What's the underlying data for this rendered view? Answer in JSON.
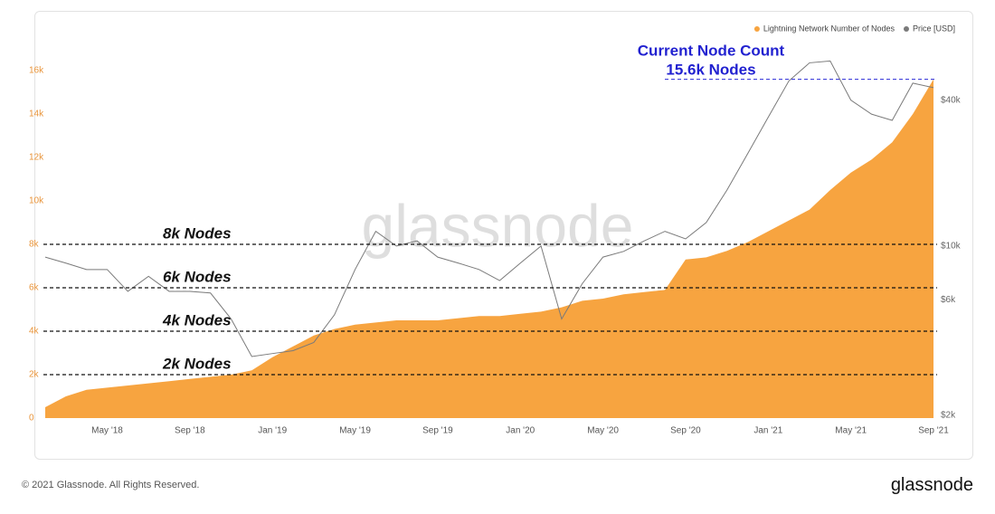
{
  "chart_data": {
    "type": "area-line",
    "watermark": "glassnode",
    "footer": "© 2021 Glassnode. All Rights Reserved.",
    "brand": "glassnode",
    "x": [
      "2018-02",
      "2018-03",
      "2018-04",
      "2018-05",
      "2018-06",
      "2018-07",
      "2018-08",
      "2018-09",
      "2018-10",
      "2018-11",
      "2018-12",
      "2019-01",
      "2019-02",
      "2019-03",
      "2019-04",
      "2019-05",
      "2019-06",
      "2019-07",
      "2019-08",
      "2019-09",
      "2019-10",
      "2019-11",
      "2019-12",
      "2020-01",
      "2020-02",
      "2020-03",
      "2020-04",
      "2020-05",
      "2020-06",
      "2020-07",
      "2020-08",
      "2020-09",
      "2020-10",
      "2020-11",
      "2020-12",
      "2021-01",
      "2021-02",
      "2021-03",
      "2021-04",
      "2021-05",
      "2021-06",
      "2021-07",
      "2021-08",
      "2021-09"
    ],
    "xlim": [
      "2018-02",
      "2021-09"
    ],
    "xticks": [
      {
        "value": "2018-05",
        "label": "May '18"
      },
      {
        "value": "2018-09",
        "label": "Sep '18"
      },
      {
        "value": "2019-01",
        "label": "Jan '19"
      },
      {
        "value": "2019-05",
        "label": "May '19"
      },
      {
        "value": "2019-09",
        "label": "Sep '19"
      },
      {
        "value": "2020-01",
        "label": "Jan '20"
      },
      {
        "value": "2020-05",
        "label": "May '20"
      },
      {
        "value": "2020-09",
        "label": "Sep '20"
      },
      {
        "value": "2021-01",
        "label": "Jan '21"
      },
      {
        "value": "2021-05",
        "label": "May '21"
      },
      {
        "value": "2021-09",
        "label": "Sep '21"
      }
    ],
    "series": [
      {
        "name": "Lightning Network Number of Nodes",
        "color": "#f7a440",
        "kind": "area",
        "values": [
          500,
          1000,
          1300,
          1400,
          1500,
          1600,
          1700,
          1800,
          1900,
          2000,
          2200,
          2800,
          3300,
          3800,
          4100,
          4300,
          4400,
          4500,
          4500,
          4500,
          4600,
          4700,
          4700,
          4800,
          4900,
          5100,
          5400,
          5500,
          5700,
          5800,
          5900,
          7300,
          7400,
          7700,
          8100,
          8600,
          9100,
          9600,
          10500,
          11300,
          11900,
          12700,
          14000,
          15600
        ]
      },
      {
        "name": "Price [USD]",
        "color": "#7a7a7a",
        "kind": "line",
        "axis": "y2",
        "values": [
          9000,
          8500,
          8000,
          8000,
          6500,
          7500,
          6500,
          6500,
          6400,
          5000,
          3500,
          3600,
          3700,
          4000,
          5200,
          8000,
          11500,
          10000,
          10500,
          9000,
          8500,
          8000,
          7200,
          8500,
          10000,
          5000,
          7000,
          9000,
          9500,
          10500,
          11500,
          10700,
          12500,
          17000,
          24000,
          34000,
          48000,
          57000,
          58000,
          40000,
          35000,
          33000,
          47000,
          45000
        ]
      }
    ],
    "ylim": [
      0,
      18000
    ],
    "yticks": [
      0,
      {
        "value": 2000,
        "label": "2k"
      },
      {
        "value": 4000,
        "label": "4k"
      },
      {
        "value": 6000,
        "label": "6k"
      },
      {
        "value": 8000,
        "label": "8k"
      },
      {
        "value": 10000,
        "label": "10k"
      },
      {
        "value": 12000,
        "label": "12k"
      },
      {
        "value": 14000,
        "label": "14k"
      },
      {
        "value": 16000,
        "label": "16k"
      }
    ],
    "y2lim": [
      1950,
      80000
    ],
    "y2log": true,
    "y2ticks": [
      {
        "value": 2000,
        "label": "$2k"
      },
      {
        "value": 6000,
        "label": "$6k"
      },
      {
        "value": 10000,
        "label": "$10k"
      },
      {
        "value": 40000,
        "label": "$40k"
      }
    ],
    "reference_lines": [
      {
        "value": 8000,
        "label": "8k Nodes"
      },
      {
        "value": 6000,
        "label": "6k Nodes"
      },
      {
        "value": 4000,
        "label": "4k Nodes"
      },
      {
        "value": 2000,
        "label": "2k Nodes"
      }
    ],
    "current": {
      "value": 15600,
      "label": "Current Node Count",
      "sublabel": "15.6k Nodes"
    },
    "legend": "top-right"
  }
}
